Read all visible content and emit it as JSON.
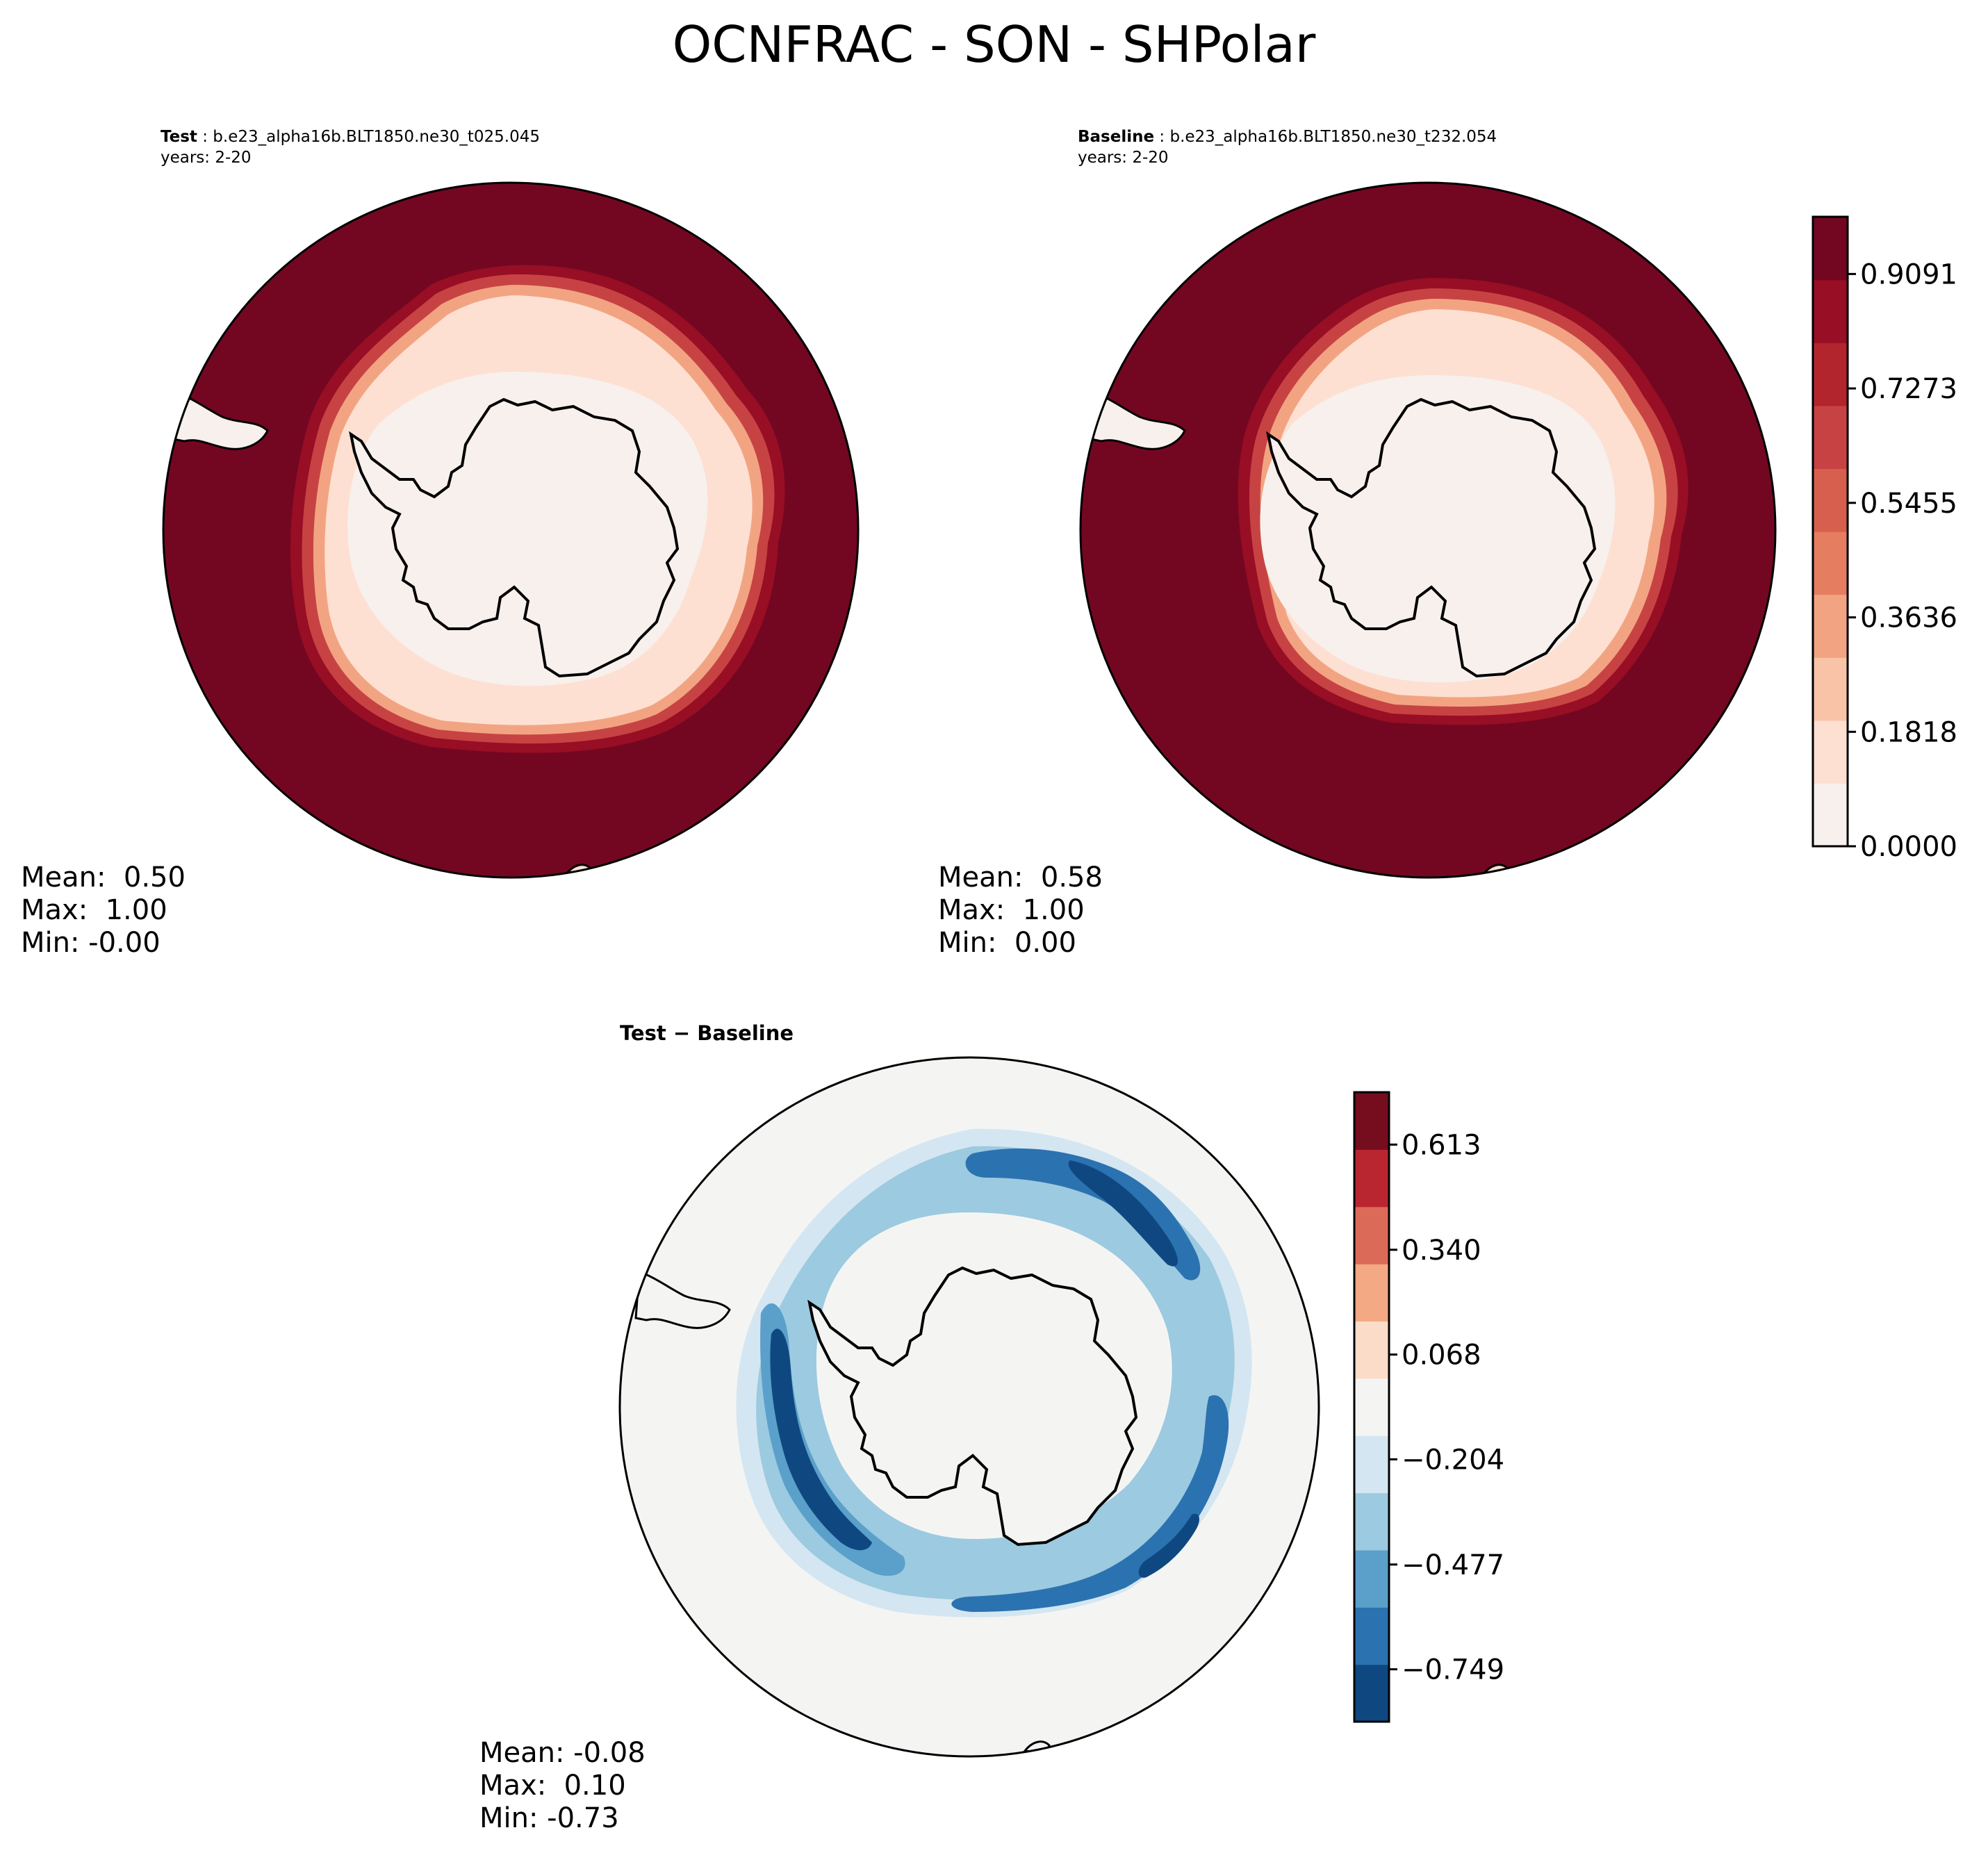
{
  "figure_title": "OCNFRAC - SON - SHPolar",
  "chart_data": [
    {
      "type": "heatmap",
      "projection": "south-polar-stereographic",
      "variable": "OCNFRAC",
      "label_prefix": "Test",
      "case": "b.e23_alpha16b.BLT1850.ne30_t025.045",
      "years": "years: 2-20",
      "stats": {
        "mean": "Mean:  0.50",
        "max": "Max:  1.00",
        "min": "Min: -0.00"
      }
    },
    {
      "type": "heatmap",
      "projection": "south-polar-stereographic",
      "variable": "OCNFRAC",
      "label_prefix": "Baseline",
      "case": "b.e23_alpha16b.BLT1850.ne30_t232.054",
      "years": "years: 2-20",
      "stats": {
        "mean": "Mean:  0.58",
        "max": "Max:  1.00",
        "min": "Min:  0.00"
      },
      "colorbar": {
        "vmin": 0.0,
        "vmax": 1.0,
        "tick_values": [
          0.0,
          0.1818,
          0.3636,
          0.5455,
          0.7273,
          0.9091
        ],
        "tick_labels": [
          "0.0000",
          "0.1818",
          "0.3636",
          "0.5455",
          "0.7273",
          "0.9091"
        ],
        "colors": [
          "#f7f0ed",
          "#fde0d2",
          "#f9c3a8",
          "#f2a482",
          "#e57d61",
          "#d65f4d",
          "#c74343",
          "#b2252d",
          "#980e24",
          "#730722"
        ]
      }
    },
    {
      "type": "heatmap",
      "projection": "south-polar-stereographic",
      "variable": "OCNFRAC difference",
      "label": "Test − Baseline",
      "stats": {
        "mean": "Mean: -0.08",
        "max": "Max:  0.10",
        "min": "Min: -0.73"
      },
      "colorbar": {
        "vmin": -0.885,
        "vmax": 0.749,
        "tick_values": [
          -0.749,
          -0.477,
          -0.204,
          0.068,
          0.34,
          0.613
        ],
        "tick_labels": [
          "−0.749",
          "−0.477",
          "−0.204",
          "0.068",
          "0.340",
          "0.613"
        ],
        "colors": [
          "#0f4880",
          "#2b72b0",
          "#5aa0ca",
          "#9ccae0",
          "#d4e6f1",
          "#f4f5f3",
          "#fbdcc9",
          "#f3a983",
          "#db6a58",
          "#b9262f",
          "#750d1f"
        ]
      }
    }
  ]
}
